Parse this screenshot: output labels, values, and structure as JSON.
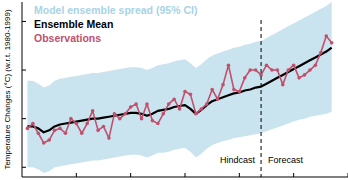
{
  "chart_data": {
    "type": "line",
    "y_label": "Temperature Changes (°C) (w.r.t. 1980-1999)",
    "x": [
      1961,
      1962,
      1963,
      1964,
      1965,
      1966,
      1967,
      1968,
      1969,
      1970,
      1971,
      1972,
      1973,
      1974,
      1975,
      1976,
      1977,
      1978,
      1979,
      1980,
      1981,
      1982,
      1983,
      1984,
      1985,
      1986,
      1987,
      1988,
      1989,
      1990,
      1991,
      1992,
      1993,
      1994,
      1995,
      1996,
      1997,
      1998,
      1999,
      2000,
      2001,
      2002,
      2003,
      2004,
      2005,
      2006,
      2007,
      2008,
      2009,
      2010,
      2011,
      2012,
      2013,
      2014,
      2015,
      2016,
      2017
    ],
    "series": [
      {
        "name": "Model ensemble spread (95% CI)",
        "type": "area",
        "color": "#c9e3ef",
        "upper": [
          0.39,
          0.39,
          0.36,
          0.32,
          0.34,
          0.39,
          0.41,
          0.42,
          0.43,
          0.44,
          0.45,
          0.46,
          0.47,
          0.47,
          0.48,
          0.49,
          0.5,
          0.51,
          0.52,
          0.53,
          0.53,
          0.52,
          0.5,
          0.52,
          0.55,
          0.56,
          0.57,
          0.59,
          0.6,
          0.61,
          0.57,
          0.52,
          0.56,
          0.61,
          0.65,
          0.67,
          0.69,
          0.71,
          0.73,
          0.74,
          0.76,
          0.77,
          0.79,
          0.8,
          0.83,
          0.86,
          0.89,
          0.92,
          0.95,
          0.98,
          1.01,
          1.04,
          1.07,
          1.1,
          1.13,
          1.16,
          1.2
        ],
        "lower": [
          -0.5,
          -0.5,
          -0.52,
          -0.56,
          -0.54,
          -0.5,
          -0.49,
          -0.48,
          -0.47,
          -0.46,
          -0.45,
          -0.44,
          -0.43,
          -0.43,
          -0.42,
          -0.41,
          -0.4,
          -0.39,
          -0.38,
          -0.37,
          -0.37,
          -0.38,
          -0.4,
          -0.38,
          -0.35,
          -0.35,
          -0.34,
          -0.32,
          -0.31,
          -0.3,
          -0.34,
          -0.4,
          -0.36,
          -0.31,
          -0.27,
          -0.25,
          -0.23,
          -0.22,
          -0.2,
          -0.19,
          -0.18,
          -0.17,
          -0.16,
          -0.15,
          -0.13,
          -0.11,
          -0.09,
          -0.07,
          -0.05,
          -0.03,
          -0.01,
          0.0,
          0.02,
          0.03,
          0.04,
          0.05,
          0.07
        ]
      },
      {
        "name": "Ensemble Mean",
        "type": "line",
        "color": "#000000",
        "line_style": "solid",
        "values": [
          -0.08,
          -0.08,
          -0.1,
          -0.14,
          -0.12,
          -0.08,
          -0.06,
          -0.05,
          -0.04,
          -0.03,
          -0.02,
          -0.01,
          0,
          0,
          0.01,
          0.02,
          0.03,
          0.04,
          0.05,
          0.06,
          0.06,
          0.05,
          0.03,
          0.05,
          0.08,
          0.09,
          0.1,
          0.12,
          0.13,
          0.14,
          0.1,
          0.05,
          0.09,
          0.14,
          0.18,
          0.2,
          0.22,
          0.24,
          0.26,
          0.27,
          0.29,
          0.3,
          0.32,
          0.33,
          0.36,
          0.39,
          0.42,
          0.45,
          0.48,
          0.51,
          0.54,
          0.57,
          0.6,
          0.63,
          0.66,
          0.69,
          0.73
        ]
      },
      {
        "name": "Observations",
        "type": "line",
        "color": "#c2506c",
        "marker": "circle",
        "line_style": "solid",
        "values": [
          -0.1,
          -0.05,
          -0.15,
          -0.25,
          -0.22,
          -0.12,
          -0.1,
          -0.15,
          0.0,
          -0.05,
          -0.15,
          -0.05,
          0.08,
          -0.12,
          -0.08,
          -0.2,
          0.05,
          0.0,
          0.05,
          0.12,
          0.15,
          0.0,
          0.15,
          -0.02,
          -0.05,
          0.05,
          0.15,
          0.2,
          0.1,
          0.28,
          0.25,
          0.05,
          0.1,
          0.15,
          0.3,
          0.2,
          0.35,
          0.55,
          0.3,
          0.28,
          0.42,
          0.5,
          0.5,
          0.45,
          0.55,
          0.5,
          0.5,
          0.35,
          0.5,
          0.55,
          0.42,
          0.45,
          0.5,
          0.55,
          0.68,
          0.85,
          0.78
        ]
      }
    ],
    "vline": {
      "x": 2004,
      "labels": [
        "Hindcast",
        "Forecast"
      ]
    },
    "xlim": [
      1960,
      2020
    ],
    "ylim": [
      -0.6,
      1.2
    ],
    "xticks": [
      1970,
      1980,
      1990,
      2000,
      2010,
      2020
    ],
    "yticks": [
      -0.5,
      0,
      0.5,
      1
    ],
    "tick_labels": false,
    "grid": false,
    "legend": "upper left"
  }
}
